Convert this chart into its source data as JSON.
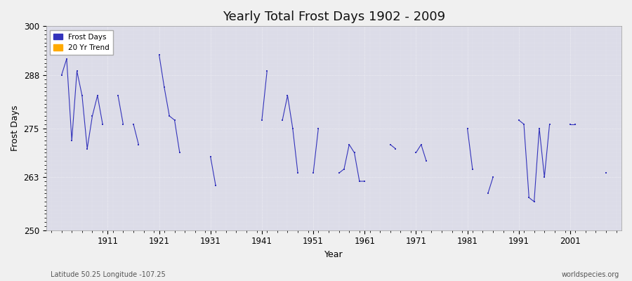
{
  "title": "Yearly Total Frost Days 1902 - 2009",
  "xlabel": "Year",
  "ylabel": "Frost Days",
  "subtitle": "Latitude 50.25 Longitude -107.25",
  "watermark": "worldspecies.org",
  "ylim": [
    250,
    300
  ],
  "xlim": [
    1899,
    2011
  ],
  "yticks": [
    250,
    263,
    275,
    288,
    300
  ],
  "xticks": [
    1911,
    1921,
    1931,
    1941,
    1951,
    1961,
    1971,
    1981,
    1991,
    2001
  ],
  "bg_color": "#f0f0f0",
  "plot_bg_color": "#dcdce8",
  "line_color": "#3333bb",
  "trend_color": "#ffaa00",
  "legend_labels": [
    "Frost Days",
    "20 Yr Trend"
  ],
  "segments": [
    [
      1902,
      1903,
      1904,
      1905,
      1906,
      1907,
      1908,
      1909,
      1910
    ],
    [
      1913,
      1914
    ],
    [
      1916,
      1917
    ],
    [
      1921,
      1922,
      1923,
      1924,
      1925
    ],
    [
      1931,
      1932
    ],
    [
      1941,
      1942
    ],
    [
      1945,
      1946,
      1947,
      1948
    ],
    [
      1951,
      1952
    ],
    [
      1956,
      1957,
      1958,
      1959,
      1960,
      1961
    ],
    [
      1966,
      1967
    ],
    [
      1971,
      1972,
      1973
    ],
    [
      1981,
      1982
    ],
    [
      1985,
      1986
    ],
    [
      1991,
      1992,
      1993,
      1994,
      1995,
      1996,
      1997
    ],
    [
      2001,
      2002
    ],
    [
      2008
    ]
  ],
  "segment_values": [
    [
      288,
      292,
      272,
      289,
      283,
      270,
      278,
      283,
      276
    ],
    [
      283,
      276
    ],
    [
      276,
      271
    ],
    [
      293,
      285,
      278,
      277,
      269
    ],
    [
      268,
      261
    ],
    [
      277,
      289
    ],
    [
      277,
      283,
      275,
      264
    ],
    [
      264,
      275
    ],
    [
      264,
      265,
      271,
      269,
      262,
      262
    ],
    [
      271,
      270
    ],
    [
      269,
      271,
      267
    ],
    [
      275,
      265
    ],
    [
      259,
      263
    ],
    [
      277,
      276,
      258,
      257,
      275,
      263,
      276
    ],
    [
      276,
      276
    ],
    [
      264
    ]
  ]
}
